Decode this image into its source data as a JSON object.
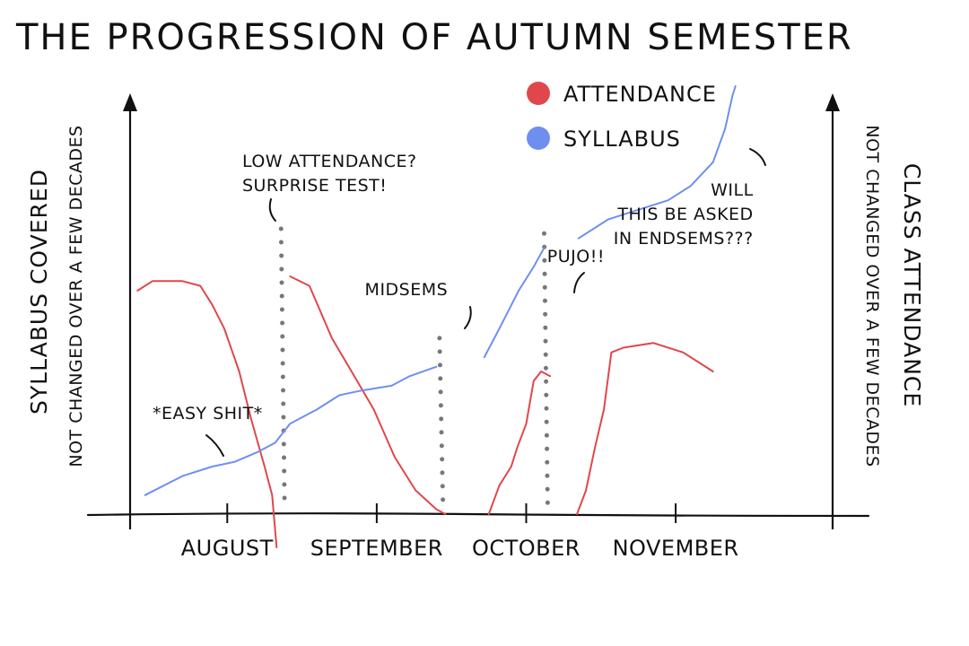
{
  "chart_data": {
    "type": "line",
    "title": "THE PROGRESSION OF AUTUMN SEMESTER",
    "ylabel_left": "SYLLABUS COVERED",
    "ylabel_left_sub": "NOT CHANGED OVER A FEW DECADES",
    "ylabel_right": "CLASS ATTENDANCE",
    "ylabel_right_sub": "NOT CHANGED OVER A FEW DECADES",
    "x_ticks": [
      {
        "label": "AUGUST",
        "x": 1
      },
      {
        "label": "SEPTEMBER",
        "x": 2
      },
      {
        "label": "OCTOBER",
        "x": 3
      },
      {
        "label": "NOVEMBER",
        "x": 4
      }
    ],
    "xlim": [
      0.35,
      5.05
    ],
    "ylim": [
      0,
      100
    ],
    "grid": false,
    "legend": {
      "position": "top-right",
      "entries": [
        {
          "name": "ATTENDANCE",
          "color": "#e0474c"
        },
        {
          "name": "SYLLABUS",
          "color": "#6f8ff0"
        }
      ]
    },
    "series": [
      {
        "name": "ATTENDANCE",
        "color": "#e0474c",
        "segments": [
          [
            [
              0.4,
              47
            ],
            [
              0.5,
              49
            ],
            [
              0.7,
              49
            ],
            [
              0.82,
              48
            ],
            [
              0.9,
              44
            ],
            [
              0.98,
              39
            ],
            [
              1.08,
              30
            ],
            [
              1.16,
              20
            ],
            [
              1.25,
              10
            ],
            [
              1.3,
              4
            ],
            [
              1.33,
              -7
            ]
          ],
          [
            [
              1.42,
              50
            ],
            [
              1.55,
              48
            ],
            [
              1.7,
              37
            ],
            [
              1.85,
              29
            ],
            [
              1.98,
              22
            ],
            [
              2.12,
              12
            ],
            [
              2.26,
              5
            ],
            [
              2.4,
              1
            ],
            [
              2.46,
              0
            ]
          ],
          [
            [
              2.75,
              0
            ],
            [
              2.82,
              6
            ],
            [
              2.9,
              10
            ],
            [
              2.94,
              14
            ],
            [
              3.0,
              19
            ],
            [
              3.05,
              28
            ],
            [
              3.1,
              30
            ],
            [
              3.16,
              29
            ]
          ],
          [
            [
              3.34,
              0
            ],
            [
              3.4,
              5
            ],
            [
              3.46,
              14
            ],
            [
              3.52,
              22
            ],
            [
              3.57,
              34
            ],
            [
              3.65,
              35
            ],
            [
              3.85,
              36
            ],
            [
              4.05,
              34
            ],
            [
              4.25,
              30
            ]
          ]
        ]
      },
      {
        "name": "SYLLABUS",
        "color": "#6f8ff0",
        "segments": [
          [
            [
              0.45,
              4
            ],
            [
              0.7,
              8
            ],
            [
              0.9,
              10
            ],
            [
              1.05,
              11
            ],
            [
              1.2,
              13
            ],
            [
              1.32,
              15
            ],
            [
              1.42,
              19
            ],
            [
              1.6,
              22
            ],
            [
              1.75,
              25
            ],
            [
              1.9,
              26
            ],
            [
              2.1,
              27
            ],
            [
              2.22,
              29
            ],
            [
              2.4,
              31
            ]
          ],
          [
            [
              2.72,
              33
            ],
            [
              2.82,
              39
            ],
            [
              2.95,
              47
            ],
            [
              3.05,
              52
            ],
            [
              3.12,
              56
            ]
          ],
          [
            [
              3.35,
              58
            ],
            [
              3.55,
              62
            ],
            [
              3.75,
              64
            ],
            [
              3.95,
              66
            ],
            [
              4.1,
              69
            ],
            [
              4.25,
              74
            ],
            [
              4.33,
              81
            ],
            [
              4.38,
              88
            ],
            [
              4.4,
              90
            ]
          ]
        ]
      }
    ],
    "markers": [
      {
        "x": 1.36,
        "y_top": 60,
        "label_id": "surprise_test"
      },
      {
        "x": 2.42,
        "y_top": 37,
        "label_id": "midsems"
      },
      {
        "x": 3.12,
        "y_top": 59,
        "label_id": "pujo"
      }
    ],
    "annotations": [
      {
        "id": "surprise_test",
        "lines": [
          "LOW ATTENDANCE?",
          "SURPRISE TEST!"
        ],
        "x": 1.1,
        "y": 73
      },
      {
        "id": "midsems",
        "lines": [
          "MIDSEMS"
        ],
        "x": 1.92,
        "y": 46
      },
      {
        "id": "pujo",
        "lines": [
          "PUJO!!"
        ],
        "x": 3.14,
        "y": 53
      },
      {
        "id": "easy",
        "lines": [
          "*EASY SHIT*"
        ],
        "x": 0.5,
        "y": 20
      },
      {
        "id": "endsems",
        "lines": [
          "WILL",
          "THIS BE ASKED",
          "IN ENDSEMS???"
        ],
        "x": 4.52,
        "y": 67
      }
    ]
  }
}
